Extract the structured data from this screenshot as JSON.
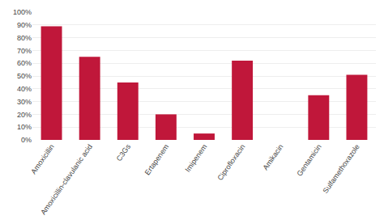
{
  "chart_data": {
    "type": "bar",
    "categories": [
      "Amoxicillin",
      "Amoxicillin-clavulanic acid",
      "C3Gs",
      "Ertapenem",
      "Imipenem",
      "Ciprofloxacin",
      "Amikacin",
      "Gentamicin",
      "Sulfamethoxazole"
    ],
    "values": [
      89,
      65,
      45,
      20,
      5,
      62,
      0,
      35,
      51
    ],
    "color": "#c0173a",
    "ylim": [
      0,
      100
    ],
    "yticks": [
      {
        "value": 0,
        "label": "0%"
      },
      {
        "value": 10,
        "label": "10%"
      },
      {
        "value": 20,
        "label": "20%"
      },
      {
        "value": 30,
        "label": "30%"
      },
      {
        "value": 40,
        "label": "40%"
      },
      {
        "value": 50,
        "label": "50%"
      },
      {
        "value": 60,
        "label": "60%"
      },
      {
        "value": 70,
        "label": "70%"
      },
      {
        "value": 80,
        "label": "80%"
      },
      {
        "value": 90,
        "label": "90%"
      },
      {
        "value": 100,
        "label": "100%"
      }
    ],
    "grid": true
  }
}
